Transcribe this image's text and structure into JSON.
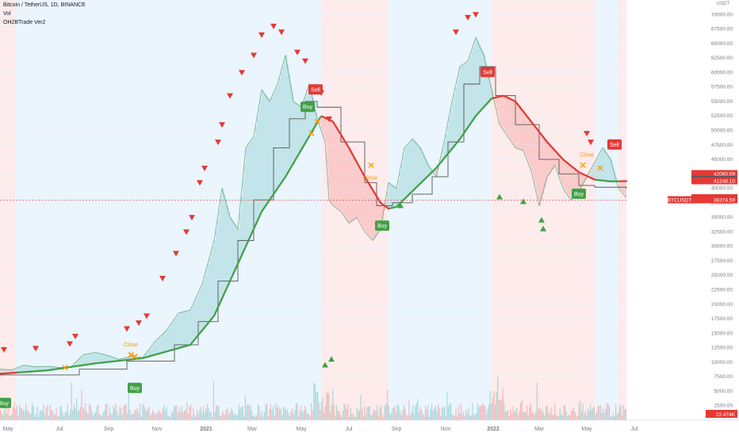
{
  "header": {
    "symbol_line": "Bitcoin / TetherUS, 1D, BINANCE",
    "vol_label": "Vol",
    "indicator_label": "OH2BTrade Ver2"
  },
  "currency": "USDT",
  "colors": {
    "bull_zone": "#e3f2fd",
    "bear_zone": "#fde4e4",
    "price_up": "#26a69a",
    "price_down": "#ef5350",
    "ma_line": "#43a047",
    "ma_line_bear": "#e53935",
    "step_line": "#555555",
    "buy_marker": "#43a047",
    "sell_marker": "#e53935",
    "close_marker": "#ff9800"
  },
  "chart_data": {
    "type": "line",
    "y_ticks": [
      70000,
      67500,
      65000,
      62500,
      60000,
      57500,
      55000,
      52500,
      50000,
      47500,
      45000,
      42500,
      40000,
      37500,
      35000,
      32500,
      30000,
      27500,
      25000,
      22500,
      20000,
      17500,
      15000,
      12500,
      10000,
      7500,
      5000,
      2500
    ],
    "ylim": [
      0,
      72500
    ],
    "x_ticks": [
      "May",
      "Jul",
      "Sep",
      "Nov",
      "2021",
      "Mar",
      "May",
      "Jul",
      "Sep",
      "Nov",
      "2022",
      "Mar",
      "May",
      "Jul"
    ],
    "x_range_days": [
      0,
      790
    ],
    "zones": [
      {
        "type": "bear",
        "start": 0,
        "end": 20
      },
      {
        "type": "bull",
        "start": 20,
        "end": 405
      },
      {
        "type": "bear",
        "start": 405,
        "end": 490
      },
      {
        "type": "bull",
        "start": 490,
        "end": 620
      },
      {
        "type": "bear",
        "start": 620,
        "end": 750
      },
      {
        "type": "bull",
        "start": 750,
        "end": 780
      },
      {
        "type": "bear",
        "start": 780,
        "end": 790
      }
    ],
    "price": [
      [
        0,
        8800
      ],
      [
        15,
        8700
      ],
      [
        30,
        9500
      ],
      [
        45,
        9200
      ],
      [
        60,
        9300
      ],
      [
        75,
        9100
      ],
      [
        90,
        9200
      ],
      [
        105,
        11300
      ],
      [
        120,
        11700
      ],
      [
        135,
        11200
      ],
      [
        150,
        10500
      ],
      [
        165,
        11000
      ],
      [
        180,
        10800
      ],
      [
        195,
        13500
      ],
      [
        210,
        15500
      ],
      [
        225,
        18500
      ],
      [
        240,
        19000
      ],
      [
        255,
        23500
      ],
      [
        270,
        31000
      ],
      [
        280,
        40000
      ],
      [
        290,
        35000
      ],
      [
        300,
        33000
      ],
      [
        310,
        47000
      ],
      [
        320,
        49000
      ],
      [
        330,
        57000
      ],
      [
        340,
        55000
      ],
      [
        350,
        58000
      ],
      [
        360,
        63000
      ],
      [
        370,
        55000
      ],
      [
        380,
        54000
      ],
      [
        390,
        58000
      ],
      [
        400,
        52000
      ],
      [
        410,
        48000
      ],
      [
        415,
        38000
      ],
      [
        420,
        37000
      ],
      [
        430,
        36000
      ],
      [
        440,
        34000
      ],
      [
        450,
        35000
      ],
      [
        460,
        32500
      ],
      [
        470,
        31000
      ],
      [
        480,
        33000
      ],
      [
        490,
        41000
      ],
      [
        500,
        40000
      ],
      [
        510,
        47000
      ],
      [
        520,
        48500
      ],
      [
        530,
        47000
      ],
      [
        540,
        44000
      ],
      [
        550,
        42000
      ],
      [
        560,
        48000
      ],
      [
        570,
        55000
      ],
      [
        580,
        61000
      ],
      [
        590,
        62000
      ],
      [
        600,
        66000
      ],
      [
        610,
        63000
      ],
      [
        620,
        57000
      ],
      [
        630,
        51000
      ],
      [
        640,
        49000
      ],
      [
        650,
        47000
      ],
      [
        660,
        46500
      ],
      [
        670,
        43000
      ],
      [
        680,
        37000
      ],
      [
        690,
        42000
      ],
      [
        700,
        44000
      ],
      [
        710,
        40000
      ],
      [
        720,
        38000
      ],
      [
        730,
        39500
      ],
      [
        740,
        42000
      ],
      [
        750,
        44500
      ],
      [
        760,
        47000
      ],
      [
        770,
        45000
      ],
      [
        780,
        40000
      ],
      [
        790,
        38374.59
      ]
    ],
    "ma": [
      [
        0,
        8000
      ],
      [
        60,
        8600
      ],
      [
        120,
        9800
      ],
      [
        180,
        10700
      ],
      [
        240,
        13000
      ],
      [
        270,
        18000
      ],
      [
        300,
        27000
      ],
      [
        330,
        36000
      ],
      [
        360,
        42000
      ],
      [
        390,
        49000
      ],
      [
        405,
        52500
      ],
      [
        420,
        51500
      ],
      [
        440,
        47000
      ],
      [
        460,
        42000
      ],
      [
        480,
        37500
      ],
      [
        490,
        36500
      ],
      [
        500,
        36800
      ],
      [
        520,
        39500
      ],
      [
        550,
        43500
      ],
      [
        580,
        48500
      ],
      [
        600,
        52500
      ],
      [
        620,
        55500
      ],
      [
        635,
        56000
      ],
      [
        650,
        55000
      ],
      [
        670,
        51500
      ],
      [
        690,
        48000
      ],
      [
        710,
        45000
      ],
      [
        730,
        42800
      ],
      [
        750,
        41500
      ],
      [
        770,
        41200
      ],
      [
        790,
        41248.1
      ]
    ],
    "step": [
      [
        0,
        7800
      ],
      [
        100,
        8800
      ],
      [
        160,
        10200
      ],
      [
        220,
        13000
      ],
      [
        250,
        17000
      ],
      [
        275,
        24000
      ],
      [
        300,
        31000
      ],
      [
        320,
        38000
      ],
      [
        345,
        47000
      ],
      [
        365,
        52000
      ],
      [
        385,
        55000
      ],
      [
        400,
        54000
      ],
      [
        430,
        48000
      ],
      [
        460,
        41000
      ],
      [
        475,
        37000
      ],
      [
        495,
        37500
      ],
      [
        520,
        39000
      ],
      [
        545,
        42000
      ],
      [
        565,
        48000
      ],
      [
        585,
        58000
      ],
      [
        605,
        61000
      ],
      [
        625,
        56000
      ],
      [
        650,
        51000
      ],
      [
        680,
        45000
      ],
      [
        705,
        42500
      ],
      [
        730,
        40500
      ],
      [
        750,
        40200
      ],
      [
        790,
        40000
      ]
    ],
    "sell_markers": [
      [
        5,
        12200
      ],
      [
        45,
        12400
      ],
      [
        88,
        13200
      ],
      [
        95,
        14500
      ],
      [
        160,
        15800
      ],
      [
        175,
        16800
      ],
      [
        185,
        18000
      ],
      [
        205,
        24500
      ],
      [
        222,
        28800
      ],
      [
        235,
        32500
      ],
      [
        242,
        35000
      ],
      [
        252,
        41000
      ],
      [
        258,
        43500
      ],
      [
        275,
        48000
      ],
      [
        280,
        51000
      ],
      [
        290,
        56000
      ],
      [
        305,
        60000
      ],
      [
        320,
        63000
      ],
      [
        330,
        66500
      ],
      [
        345,
        68000
      ],
      [
        355,
        67000
      ],
      [
        375,
        63500
      ],
      [
        385,
        62000
      ],
      [
        405,
        56500
      ],
      [
        415,
        52000
      ],
      [
        575,
        67000
      ],
      [
        590,
        69500
      ],
      [
        600,
        70000
      ],
      [
        740,
        49500
      ],
      [
        745,
        48000
      ]
    ],
    "buy_markers": [
      [
        410,
        9500
      ],
      [
        418,
        10500
      ],
      [
        505,
        37000
      ],
      [
        630,
        38500
      ],
      [
        660,
        37700
      ],
      [
        683,
        34500
      ],
      [
        685,
        33000
      ]
    ],
    "signals": [
      {
        "label": "Buy",
        "kind": "buy",
        "day": 5,
        "value": 2900
      },
      {
        "label": "Buy",
        "kind": "buy",
        "day": 170,
        "value": 5500
      },
      {
        "label": "Buy",
        "kind": "buy",
        "day": 388,
        "value": 54000
      },
      {
        "label": "Sell",
        "kind": "sell",
        "day": 398,
        "value": 57000
      },
      {
        "label": "Buy",
        "kind": "buy",
        "day": 482,
        "value": 33500
      },
      {
        "label": "Sell",
        "kind": "sell",
        "day": 615,
        "value": 60000
      },
      {
        "label": "Buy",
        "kind": "buy",
        "day": 730,
        "value": 39000
      },
      {
        "label": "Sell",
        "kind": "sell",
        "day": 775,
        "value": 47500
      }
    ],
    "close_labels": [
      {
        "label": "Close",
        "day": 165,
        "value": 12700
      },
      {
        "label": "Close",
        "day": 467,
        "value": 41500
      },
      {
        "label": "Close",
        "day": 740,
        "value": 45500
      }
    ],
    "close_x_markers": [
      [
        82,
        9100
      ],
      [
        165,
        11300
      ],
      [
        170,
        11000
      ],
      [
        393,
        49500
      ],
      [
        400,
        51500
      ],
      [
        468,
        44000
      ],
      [
        735,
        44000
      ],
      [
        757,
        43500
      ]
    ],
    "price_labels": [
      {
        "text": "42060.59",
        "value": 42060.59,
        "color": "#e53935"
      },
      {
        "text": "41256.08",
        "value": 41256.08,
        "color": "#455a64"
      },
      {
        "text": "41248.10",
        "value": 41248.1,
        "color": "#e53935"
      },
      {
        "text": "38509.39",
        "value": 38509.39,
        "color": "#e53935"
      },
      {
        "text": "38374.59",
        "value": 38374.59,
        "color": "#e53935"
      }
    ],
    "symbol_label": "BTCUSDT",
    "volume_label": "22.474K"
  }
}
